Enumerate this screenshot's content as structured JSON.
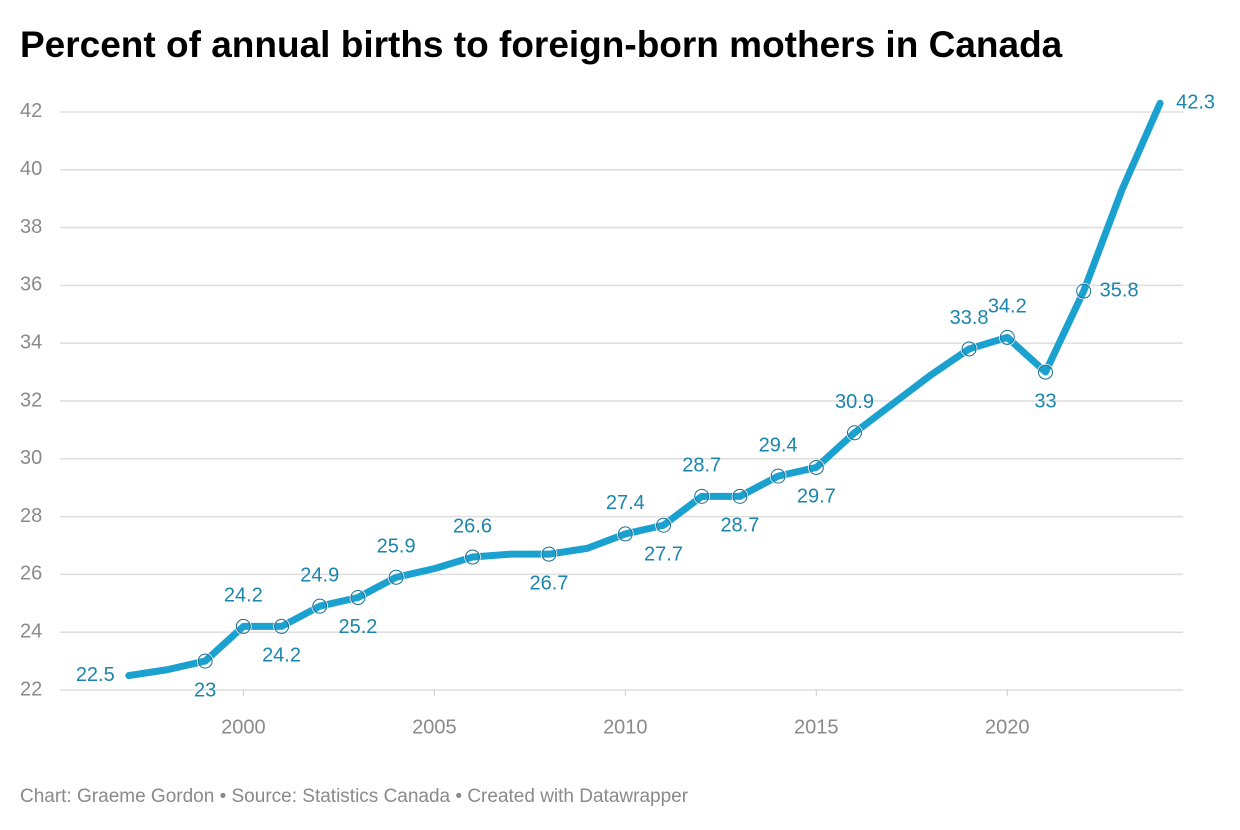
{
  "chart_data": {
    "type": "line",
    "title": "Percent of annual births to foreign-born mothers in Canada",
    "source": "Chart: Graeme Gordon • Source: Statistics Canada • Created with Datawrapper",
    "x": [
      1997,
      1998,
      1999,
      2000,
      2001,
      2002,
      2003,
      2004,
      2005,
      2006,
      2007,
      2008,
      2009,
      2010,
      2011,
      2012,
      2013,
      2014,
      2015,
      2016,
      2017,
      2018,
      2019,
      2020,
      2021,
      2022,
      2023,
      2024
    ],
    "series": [
      {
        "color": "#1ba1d0",
        "values": [
          22.5,
          22.7,
          23,
          24.2,
          24.2,
          24.9,
          25.2,
          25.9,
          26.2,
          26.6,
          26.7,
          26.7,
          26.9,
          27.4,
          27.7,
          28.7,
          28.7,
          29.4,
          29.7,
          30.9,
          31.9,
          32.9,
          33.8,
          34.2,
          33,
          35.8,
          39.3,
          42.3
        ],
        "label_positions": [
          "left",
          null,
          "below",
          "above",
          "below",
          "above",
          "below",
          "above",
          null,
          "above",
          null,
          "below",
          null,
          "above",
          "below",
          "above",
          "below",
          "above",
          "below",
          "above",
          null,
          null,
          "above",
          "above",
          "below",
          "right",
          null,
          "right"
        ]
      }
    ],
    "xlim": [
      1995.2,
      2024.6
    ],
    "xticks": [
      2000,
      2005,
      2010,
      2015,
      2020
    ],
    "ylim": [
      22,
      42.5
    ],
    "yticks": [
      22,
      24,
      26,
      28,
      30,
      32,
      34,
      36,
      38,
      40,
      42
    ],
    "grid": true
  }
}
